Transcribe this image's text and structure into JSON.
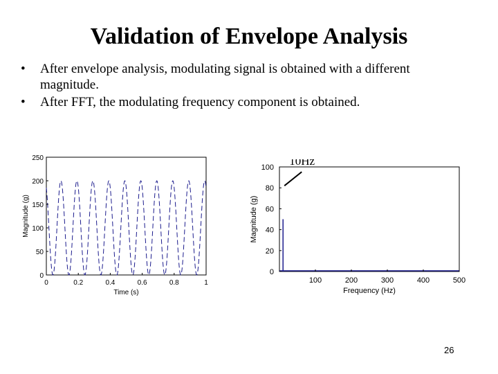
{
  "slide": {
    "title": "Validation of Envelope Analysis",
    "bullets": [
      "After envelope analysis, modulating signal is obtained with a different magnitude.",
      "After FFT, the modulating frequency component is obtained."
    ],
    "bullet_symbol": "•",
    "annotation": "10Hz",
    "page_number": "26"
  },
  "chart_data": [
    {
      "type": "line",
      "xlabel": "Time (s)",
      "ylabel": "Magnitude (g)",
      "xlim": [
        0,
        1
      ],
      "ylim": [
        0,
        250
      ],
      "xticks": [
        "0",
        "0.2",
        "0.4",
        "0.6",
        "0.8",
        "1"
      ],
      "yticks": [
        "0",
        "50",
        "100",
        "150",
        "200",
        "250"
      ],
      "series": [
        {
          "frequency_hz": 10,
          "min": 0,
          "max": 200,
          "color": "#1a1a8c"
        }
      ],
      "grid": false
    },
    {
      "type": "line",
      "xlabel": "Frequency (Hz)",
      "ylabel": "Magnitude (g)",
      "xlim": [
        0,
        500
      ],
      "ylim": [
        0,
        100
      ],
      "xticks": [
        "100",
        "200",
        "300",
        "400",
        "500"
      ],
      "yticks": [
        "0",
        "20",
        "40",
        "60",
        "80",
        "100"
      ],
      "series": [
        {
          "peaks": [
            {
              "x": 10,
              "y": 50
            }
          ],
          "color": "#1a1a8c"
        }
      ],
      "grid": false
    }
  ]
}
